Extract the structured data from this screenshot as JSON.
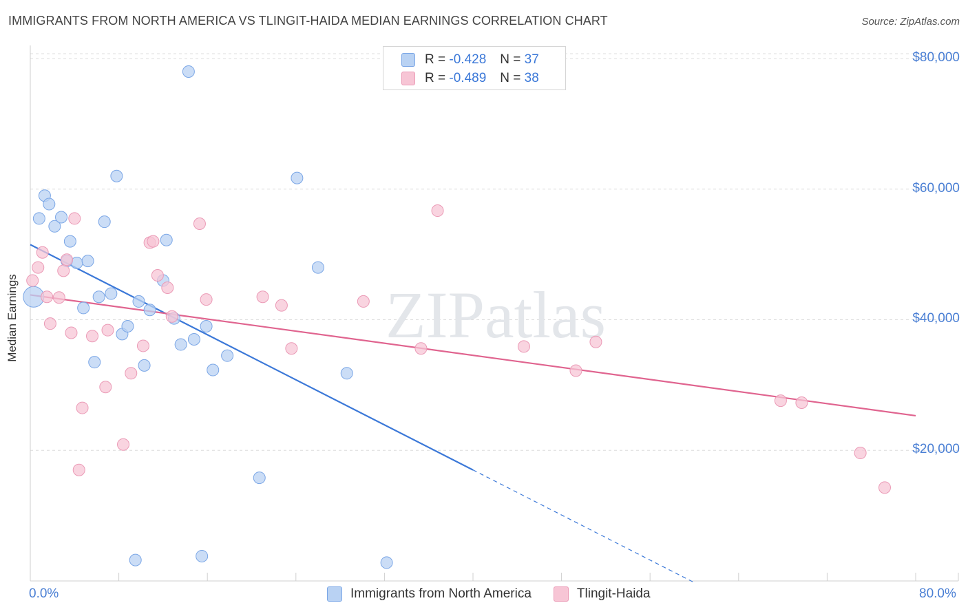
{
  "title": "IMMIGRANTS FROM NORTH AMERICA VS TLINGIT-HAIDA MEDIAN EARNINGS CORRELATION CHART",
  "source": "Source: ZipAtlas.com",
  "watermark": "ZIPatlas",
  "legend": {
    "series1": {
      "r_label": "R = ",
      "r_value": "-0.428",
      "n_label": "N = ",
      "n_value": "37"
    },
    "series2": {
      "r_label": "R = ",
      "r_value": "-0.489",
      "n_label": "N = ",
      "n_value": "38"
    }
  },
  "colors": {
    "blue_fill": "#b9d2f3",
    "blue_line": "#3b78d8",
    "pink_fill": "#f7c5d5",
    "pink_line": "#e0648f",
    "tick": "#4a7fd4"
  },
  "chart_data": {
    "type": "scatter",
    "xlabel": "",
    "ylabel": "Median Earnings",
    "xlim": [
      0,
      80
    ],
    "ylim": [
      0,
      82000
    ],
    "x_tick_labels": [
      "0.0%",
      "80.0%"
    ],
    "y_ticks": [
      {
        "value": 20000,
        "label": "$20,000"
      },
      {
        "value": 40000,
        "label": "$40,000"
      },
      {
        "value": 60000,
        "label": "$60,000"
      },
      {
        "value": 80000,
        "label": "$80,000"
      }
    ],
    "series": [
      {
        "name": "Immigrants from North America",
        "color": "#b9d2f3",
        "points": [
          [
            0.3,
            43500
          ],
          [
            0.8,
            55500
          ],
          [
            1.3,
            59000
          ],
          [
            1.7,
            57700
          ],
          [
            2.2,
            54300
          ],
          [
            2.8,
            55700
          ],
          [
            3.3,
            49000
          ],
          [
            3.6,
            52000
          ],
          [
            4.2,
            48700
          ],
          [
            4.8,
            41800
          ],
          [
            5.2,
            49000
          ],
          [
            5.8,
            33500
          ],
          [
            6.2,
            43500
          ],
          [
            6.7,
            55000
          ],
          [
            7.3,
            44000
          ],
          [
            7.8,
            62000
          ],
          [
            8.3,
            37800
          ],
          [
            8.8,
            39000
          ],
          [
            9.5,
            3200
          ],
          [
            9.8,
            42800
          ],
          [
            10.3,
            33000
          ],
          [
            10.8,
            41500
          ],
          [
            12.0,
            46000
          ],
          [
            12.3,
            52200
          ],
          [
            13.0,
            40200
          ],
          [
            13.6,
            36200
          ],
          [
            14.3,
            78000
          ],
          [
            14.8,
            37000
          ],
          [
            15.5,
            3800
          ],
          [
            15.9,
            39000
          ],
          [
            16.5,
            32300
          ],
          [
            17.8,
            34500
          ],
          [
            20.7,
            15800
          ],
          [
            24.1,
            61700
          ],
          [
            26.0,
            48000
          ],
          [
            28.6,
            31800
          ],
          [
            32.2,
            2800
          ]
        ]
      },
      {
        "name": "Tlingit-Haida",
        "color": "#f7c5d5",
        "points": [
          [
            0.2,
            46000
          ],
          [
            0.7,
            48000
          ],
          [
            1.1,
            50300
          ],
          [
            1.5,
            43500
          ],
          [
            1.8,
            39400
          ],
          [
            2.6,
            43400
          ],
          [
            3.0,
            47500
          ],
          [
            3.3,
            49200
          ],
          [
            3.7,
            38000
          ],
          [
            4.0,
            55500
          ],
          [
            4.4,
            17000
          ],
          [
            4.7,
            26500
          ],
          [
            5.6,
            37500
          ],
          [
            6.8,
            29700
          ],
          [
            7.0,
            38400
          ],
          [
            8.4,
            20900
          ],
          [
            9.1,
            31800
          ],
          [
            10.2,
            36000
          ],
          [
            10.8,
            51800
          ],
          [
            11.1,
            52000
          ],
          [
            11.5,
            46800
          ],
          [
            12.4,
            44900
          ],
          [
            12.8,
            40500
          ],
          [
            15.3,
            54700
          ],
          [
            15.9,
            43100
          ],
          [
            21.0,
            43500
          ],
          [
            22.7,
            42200
          ],
          [
            23.6,
            35600
          ],
          [
            30.1,
            42800
          ],
          [
            35.3,
            35600
          ],
          [
            36.8,
            56700
          ],
          [
            44.6,
            35900
          ],
          [
            49.3,
            32200
          ],
          [
            51.1,
            36600
          ],
          [
            67.8,
            27600
          ],
          [
            69.7,
            27300
          ],
          [
            75.0,
            19600
          ],
          [
            77.2,
            14300
          ]
        ]
      }
    ],
    "trend_lines": [
      {
        "name": "Immigrants from North America",
        "color": "#3b78d8",
        "x": [
          0,
          40
        ],
        "y": [
          51500,
          17000
        ],
        "dashed_to_x": 60
      },
      {
        "name": "Tlingit-Haida",
        "color": "#e0648f",
        "x": [
          0,
          80
        ],
        "y": [
          43800,
          25300
        ]
      }
    ]
  }
}
